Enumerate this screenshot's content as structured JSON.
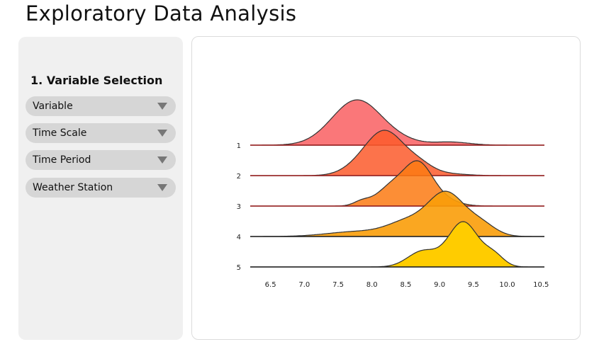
{
  "header": {
    "title": "Exploratory Data Analysis"
  },
  "sidebar": {
    "section_title": "1. Variable Selection",
    "selects": [
      {
        "label": "Variable",
        "icon": "chevron-down-icon"
      },
      {
        "label": "Time Scale",
        "icon": "chevron-down-icon"
      },
      {
        "label": "Time Period",
        "icon": "chevron-down-icon"
      },
      {
        "label": "Weather Station",
        "icon": "chevron-down-icon"
      }
    ]
  },
  "chart_data": {
    "type": "area",
    "subtype": "ridgeline",
    "title": "",
    "xlabel": "",
    "ylabel": "",
    "xlim": [
      6.2,
      10.55
    ],
    "x_ticks": [
      "6.5",
      "7.0",
      "7.5",
      "8.0",
      "8.5",
      "9.0",
      "9.5",
      "10.0",
      "10.5"
    ],
    "grid": false,
    "legend": "none",
    "series": [
      {
        "name": "1",
        "color": "#f95f62",
        "opacity": 0.85,
        "components": [
          {
            "mu": 7.78,
            "sigma": 0.37,
            "w": 1.0
          },
          {
            "mu": 9.15,
            "sigma": 0.28,
            "w": 0.07
          },
          {
            "mu": 8.45,
            "sigma": 0.25,
            "w": 0.06
          }
        ]
      },
      {
        "name": "2",
        "color": "#fc5a2b",
        "opacity": 0.85,
        "components": [
          {
            "mu": 8.2,
            "sigma": 0.28,
            "w": 1.0
          },
          {
            "mu": 7.8,
            "sigma": 0.25,
            "w": 0.15
          },
          {
            "mu": 8.7,
            "sigma": 0.2,
            "w": 0.2
          },
          {
            "mu": 9.05,
            "sigma": 0.3,
            "w": 0.05
          }
        ]
      },
      {
        "name": "3",
        "color": "#fb7a13",
        "opacity": 0.85,
        "components": [
          {
            "mu": 8.68,
            "sigma": 0.2,
            "w": 1.0
          },
          {
            "mu": 8.3,
            "sigma": 0.22,
            "w": 0.55
          },
          {
            "mu": 7.85,
            "sigma": 0.12,
            "w": 0.12
          },
          {
            "mu": 8.95,
            "sigma": 0.25,
            "w": 0.25
          }
        ]
      },
      {
        "name": "4",
        "color": "#f99d09",
        "opacity": 0.9,
        "components": [
          {
            "mu": 9.1,
            "sigma": 0.26,
            "w": 1.0
          },
          {
            "mu": 8.55,
            "sigma": 0.3,
            "w": 0.35
          },
          {
            "mu": 9.6,
            "sigma": 0.22,
            "w": 0.3
          },
          {
            "mu": 7.8,
            "sigma": 0.45,
            "w": 0.12
          }
        ]
      },
      {
        "name": "5",
        "color": "#ffcc00",
        "opacity": 1.0,
        "components": [
          {
            "mu": 9.35,
            "sigma": 0.22,
            "w": 1.0
          },
          {
            "mu": 8.75,
            "sigma": 0.22,
            "w": 0.35
          },
          {
            "mu": 9.8,
            "sigma": 0.15,
            "w": 0.25
          }
        ]
      }
    ]
  }
}
